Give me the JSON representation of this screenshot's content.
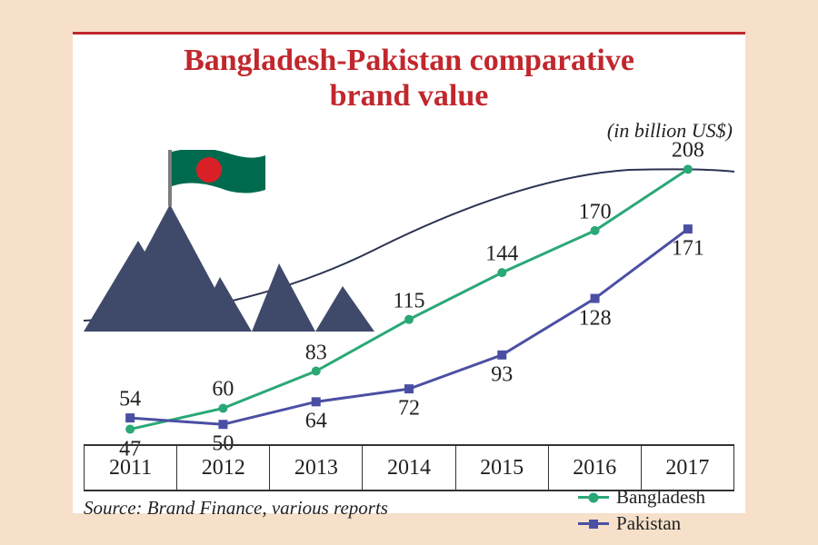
{
  "chart": {
    "type": "line",
    "title_line1": "Bangladesh-Pakistan comparative",
    "title_line2": "brand value",
    "subtitle": "(in billion US$)",
    "source": "Source: Brand Finance, various reports",
    "background_color": "#f6e0ca",
    "panel_color": "#ffffff",
    "title_color": "#c1272d",
    "rule_color": "#c1272d",
    "axis_color": "#333333",
    "text_color": "#222222",
    "label_fontsize": 24,
    "title_fontsize": 34,
    "subtitle_fontsize": 22,
    "source_fontsize": 21,
    "mountain_fill": "#3f4a6b",
    "mountain_outline": "#2a3352",
    "flag_pole": "#7d7d7d",
    "flag_green": "#006a4e",
    "flag_red": "#d92027",
    "years": [
      "2011",
      "2012",
      "2013",
      "2014",
      "2015",
      "2016",
      "2017"
    ],
    "ylim": [
      40,
      220
    ],
    "series": [
      {
        "name": "Bangladesh",
        "values": [
          47,
          60,
          83,
          115,
          144,
          170,
          208
        ],
        "color": "#2aa876",
        "marker": "circle",
        "label_positions": [
          "below",
          "above",
          "above",
          "above",
          "above",
          "above",
          "above"
        ]
      },
      {
        "name": "Pakistan",
        "values": [
          54,
          50,
          64,
          72,
          93,
          128,
          171
        ],
        "color": "#4b4fa3",
        "marker": "square",
        "label_positions": [
          "above",
          "below",
          "below",
          "below",
          "below",
          "below",
          "below"
        ]
      }
    ],
    "line_width": 3,
    "marker_size": 10
  }
}
